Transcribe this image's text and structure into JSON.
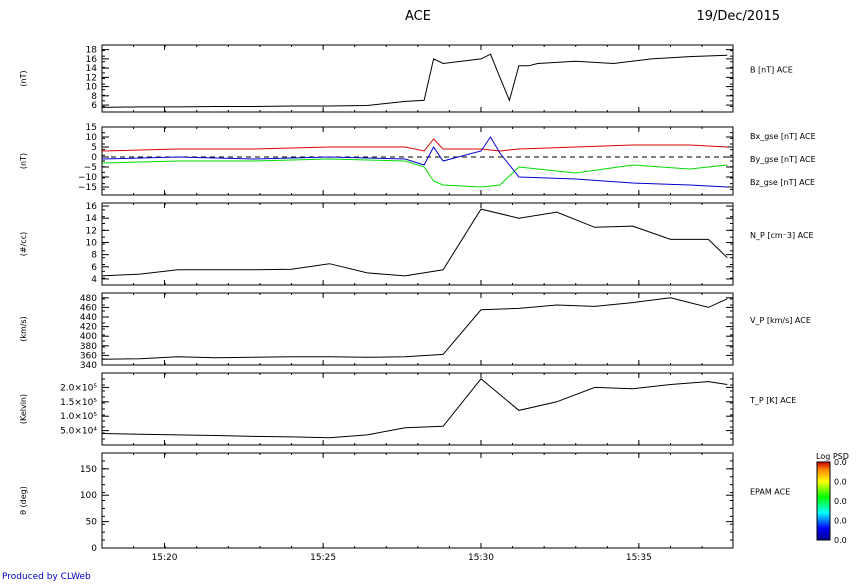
{
  "header": {
    "mission": "ACE",
    "date": "19/Dec/2015"
  },
  "footer": {
    "credit": "Produced by CLWeb"
  },
  "chart_data": [
    {
      "type": "line",
      "ylabel": "(nT)",
      "series_label": "B [nT] ACE",
      "ylim": [
        4.5,
        19
      ],
      "yticks": [
        {
          "v": 18,
          "t": "18"
        },
        {
          "v": 16,
          "t": "16"
        },
        {
          "v": 14,
          "t": "14"
        },
        {
          "v": 12,
          "t": "12"
        },
        {
          "v": 10,
          "t": "10"
        },
        {
          "v": 8,
          "t": "8"
        },
        {
          "v": 6,
          "t": "6"
        }
      ],
      "series": [
        {
          "color": "#000000",
          "x": [
            15.3,
            15.32,
            15.34,
            15.36,
            15.38,
            15.4,
            15.42,
            15.44,
            15.46,
            15.47,
            15.475,
            15.48,
            15.5,
            15.505,
            15.51,
            15.515,
            15.52,
            15.525,
            15.53,
            15.55,
            15.57,
            15.59,
            15.61,
            15.63
          ],
          "y": [
            5.5,
            5.6,
            5.6,
            5.7,
            5.7,
            5.8,
            5.8,
            5.9,
            6.8,
            7.0,
            16.0,
            15.0,
            16.0,
            17.0,
            12.0,
            7.0,
            14.5,
            14.5,
            15.0,
            15.5,
            15.0,
            16.0,
            16.5,
            16.8
          ]
        }
      ]
    },
    {
      "type": "line",
      "ylabel": "(nT)",
      "ylim": [
        -19,
        15
      ],
      "zero_line": true,
      "yticks": [
        {
          "v": 15,
          "t": "15"
        },
        {
          "v": 10,
          "t": "10"
        },
        {
          "v": 5,
          "t": "5"
        },
        {
          "v": 0,
          "t": "0"
        },
        {
          "v": -5,
          "t": "−5"
        },
        {
          "v": -10,
          "t": "−10"
        },
        {
          "v": -15,
          "t": "−15"
        }
      ],
      "series": [
        {
          "name": "Bx_gse [nT] ACE",
          "color": "#dd0000",
          "x": [
            15.3,
            15.34,
            15.38,
            15.42,
            15.46,
            15.47,
            15.475,
            15.48,
            15.5,
            15.51,
            15.52,
            15.55,
            15.58,
            15.61,
            15.63
          ],
          "y": [
            3,
            4,
            4,
            5,
            5,
            3,
            9,
            4,
            4,
            3,
            4,
            5,
            6,
            6,
            5
          ]
        },
        {
          "name": "By_gse [nT] ACE",
          "color": "#00dd00",
          "x": [
            15.3,
            15.34,
            15.38,
            15.42,
            15.46,
            15.47,
            15.475,
            15.48,
            15.5,
            15.51,
            15.52,
            15.55,
            15.58,
            15.61,
            15.63
          ],
          "y": [
            -3,
            -2,
            -2,
            -1,
            -2,
            -5,
            -12,
            -14,
            -15,
            -14,
            -5,
            -8,
            -4,
            -6,
            -4
          ]
        },
        {
          "name": "Bz_gse [nT] ACE",
          "color": "#0000cc",
          "x": [
            15.3,
            15.34,
            15.38,
            15.42,
            15.46,
            15.47,
            15.475,
            15.48,
            15.5,
            15.505,
            15.51,
            15.52,
            15.55,
            15.58,
            15.61,
            15.63
          ],
          "y": [
            -1,
            0,
            -1,
            0,
            -1,
            -4,
            5,
            -2,
            3,
            10,
            2,
            -10,
            -11,
            -13,
            -14,
            -15
          ]
        }
      ]
    },
    {
      "type": "line",
      "ylabel": "(#/cc)",
      "series_label": "N_P [cm⁻3] ACE",
      "ylim": [
        3,
        16.5
      ],
      "yticks": [
        {
          "v": 16,
          "t": "16"
        },
        {
          "v": 14,
          "t": "14"
        },
        {
          "v": 12,
          "t": "12"
        },
        {
          "v": 10,
          "t": "10"
        },
        {
          "v": 8,
          "t": "8"
        },
        {
          "v": 6,
          "t": "6"
        },
        {
          "v": 4,
          "t": "4"
        }
      ],
      "series": [
        {
          "color": "#000000",
          "x": [
            15.3,
            15.32,
            15.34,
            15.36,
            15.38,
            15.4,
            15.42,
            15.44,
            15.46,
            15.48,
            15.5,
            15.52,
            15.54,
            15.56,
            15.58,
            15.6,
            15.62,
            15.63
          ],
          "y": [
            4.5,
            4.8,
            5.5,
            5.5,
            5.5,
            5.6,
            6.5,
            5.0,
            4.5,
            5.5,
            15.5,
            14.0,
            15.0,
            12.5,
            12.7,
            10.5,
            10.5,
            7.5
          ]
        }
      ]
    },
    {
      "type": "line",
      "ylabel": "(km/s)",
      "series_label": "V_P [km/s] ACE",
      "ylim": [
        340,
        490
      ],
      "yticks": [
        {
          "v": 480,
          "t": "480"
        },
        {
          "v": 460,
          "t": "460"
        },
        {
          "v": 440,
          "t": "440"
        },
        {
          "v": 420,
          "t": "420"
        },
        {
          "v": 400,
          "t": "400"
        },
        {
          "v": 380,
          "t": "380"
        },
        {
          "v": 360,
          "t": "360"
        },
        {
          "v": 340,
          "t": "340"
        }
      ],
      "series": [
        {
          "color": "#000000",
          "x": [
            15.3,
            15.32,
            15.34,
            15.36,
            15.38,
            15.4,
            15.42,
            15.44,
            15.46,
            15.48,
            15.5,
            15.52,
            15.54,
            15.56,
            15.58,
            15.6,
            15.62,
            15.63
          ],
          "y": [
            352,
            353,
            357,
            355,
            356,
            357,
            357,
            356,
            357,
            362,
            455,
            458,
            465,
            462,
            470,
            480,
            460,
            478
          ]
        }
      ]
    },
    {
      "type": "line",
      "ylabel": "(Kelvin)",
      "series_label": "T_P [K] ACE",
      "ylim": [
        0,
        250000
      ],
      "yticks": [
        {
          "v": 200000,
          "t": "2.0×10⁵"
        },
        {
          "v": 150000,
          "t": "1.5×10⁵"
        },
        {
          "v": 100000,
          "t": "1.0×10⁵"
        },
        {
          "v": 50000,
          "t": "5.0×10⁴"
        }
      ],
      "series": [
        {
          "color": "#000000",
          "x": [
            15.3,
            15.32,
            15.34,
            15.36,
            15.38,
            15.4,
            15.42,
            15.44,
            15.46,
            15.48,
            15.5,
            15.52,
            15.54,
            15.56,
            15.58,
            15.6,
            15.62,
            15.63
          ],
          "y": [
            40000,
            37000,
            35000,
            33000,
            30000,
            28000,
            25000,
            35000,
            60000,
            65000,
            230000,
            120000,
            150000,
            200000,
            195000,
            210000,
            220000,
            210000
          ]
        }
      ]
    },
    {
      "type": "heatmap",
      "ylabel": "θ (deg)",
      "series_label": "EPAM ACE",
      "ylim": [
        0,
        180
      ],
      "yticks": [
        {
          "v": 150,
          "t": "150"
        },
        {
          "v": 100,
          "t": "100"
        },
        {
          "v": 50,
          "t": "50"
        },
        {
          "v": 0,
          "t": "0"
        }
      ],
      "colorbar": {
        "title": "Log PSD",
        "ticks": [
          "0.0",
          "0.0",
          "0.0",
          "0.0",
          "0.0"
        ]
      }
    }
  ],
  "xaxis": {
    "xlim": [
      15.3,
      15.633
    ],
    "ticks": [
      {
        "v": 15.333,
        "t": "15:20"
      },
      {
        "v": 15.4167,
        "t": "15:25"
      },
      {
        "v": 15.5,
        "t": "15:30"
      },
      {
        "v": 15.5833,
        "t": "15:35"
      }
    ]
  }
}
